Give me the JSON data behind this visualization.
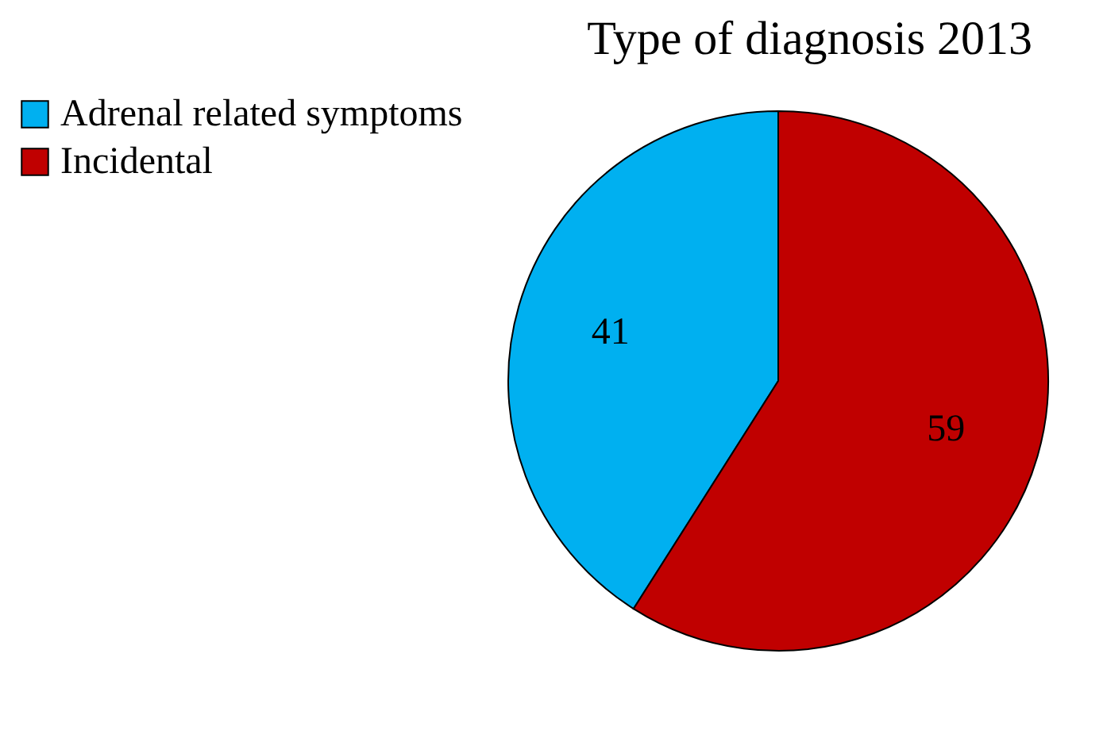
{
  "chart_data": {
    "type": "pie",
    "title": "Type of diagnosis 2013",
    "categories": [
      "Adrenal related symptoms",
      "Incidental"
    ],
    "values": [
      41,
      59
    ],
    "colors": [
      "#00b0f0",
      "#c00000"
    ],
    "data_labels": true,
    "legend": "left"
  }
}
